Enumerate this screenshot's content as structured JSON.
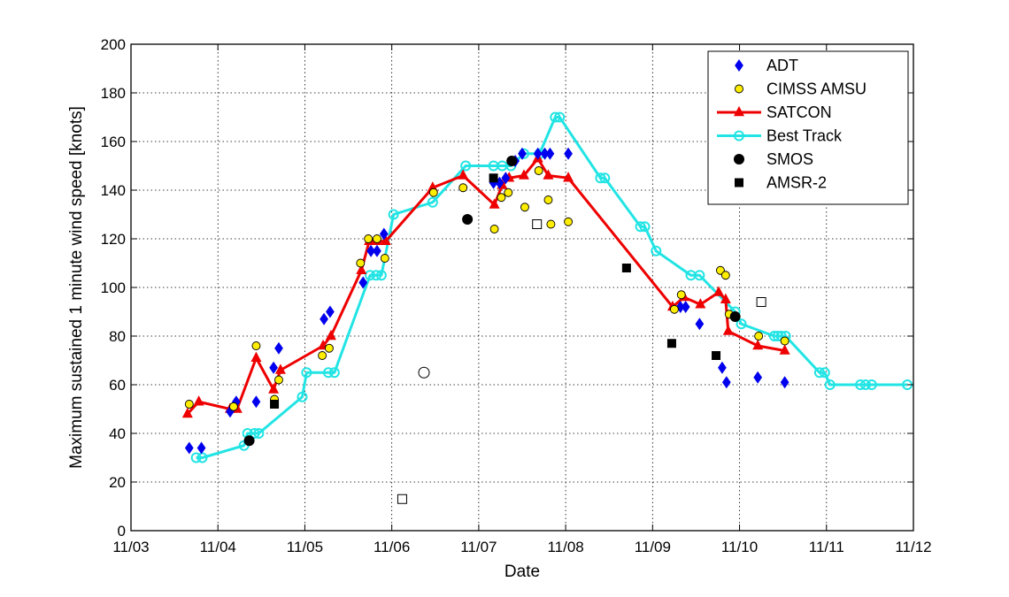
{
  "chart_data": {
    "type": "scatter",
    "xlabel": "Date",
    "ylabel": "Maximum sustained 1 minute wind speed [knots]",
    "xlim": [
      3,
      12
    ],
    "ylim": [
      0,
      200
    ],
    "x_ticks": [
      3,
      4,
      5,
      6,
      7,
      8,
      9,
      10,
      11,
      12
    ],
    "x_tick_labels": [
      "11/03",
      "11/04",
      "11/05",
      "11/06",
      "11/07",
      "11/08",
      "11/09",
      "11/10",
      "11/11",
      "11/12"
    ],
    "y_ticks": [
      0,
      20,
      40,
      60,
      80,
      100,
      120,
      140,
      160,
      180,
      200
    ],
    "y_tick_labels": [
      "0",
      "20",
      "40",
      "60",
      "80",
      "100",
      "120",
      "140",
      "160",
      "180",
      "200"
    ],
    "grid": true,
    "legend_position": "top-right",
    "series": [
      {
        "name": "ADT",
        "color": "#0000ee",
        "marker": "diamond",
        "line": false,
        "points": [
          [
            3.67,
            34
          ],
          [
            3.81,
            34
          ],
          [
            4.14,
            49
          ],
          [
            4.21,
            53
          ],
          [
            4.44,
            53
          ],
          [
            4.64,
            67
          ],
          [
            4.7,
            75
          ],
          [
            5.22,
            87
          ],
          [
            5.29,
            90
          ],
          [
            5.67,
            102
          ],
          [
            5.76,
            115
          ],
          [
            5.83,
            115
          ],
          [
            5.91,
            122
          ],
          [
            7.17,
            143
          ],
          [
            7.24,
            143
          ],
          [
            7.31,
            145
          ],
          [
            7.42,
            152
          ],
          [
            7.5,
            155
          ],
          [
            7.68,
            155
          ],
          [
            7.76,
            155
          ],
          [
            7.82,
            155
          ],
          [
            8.03,
            155
          ],
          [
            9.32,
            92
          ],
          [
            9.38,
            92
          ],
          [
            9.54,
            85
          ],
          [
            9.8,
            67
          ],
          [
            9.85,
            61
          ],
          [
            10.21,
            63
          ],
          [
            10.52,
            61
          ]
        ]
      },
      {
        "name": "CIMSS AMSU",
        "color": "#ffee00",
        "marker": "circle",
        "line": false,
        "points": [
          [
            3.67,
            52
          ],
          [
            4.18,
            51
          ],
          [
            4.44,
            76
          ],
          [
            4.65,
            54
          ],
          [
            4.7,
            62
          ],
          [
            5.2,
            72
          ],
          [
            5.28,
            75
          ],
          [
            5.64,
            110
          ],
          [
            5.73,
            120
          ],
          [
            5.83,
            120
          ],
          [
            5.92,
            112
          ],
          [
            6.48,
            139
          ],
          [
            6.82,
            141
          ],
          [
            7.18,
            124
          ],
          [
            7.26,
            137
          ],
          [
            7.34,
            139
          ],
          [
            7.53,
            133
          ],
          [
            7.69,
            148
          ],
          [
            7.8,
            136
          ],
          [
            7.83,
            126
          ],
          [
            8.03,
            127
          ],
          [
            9.25,
            91
          ],
          [
            9.33,
            97
          ],
          [
            9.78,
            107
          ],
          [
            9.84,
            105
          ],
          [
            9.88,
            89
          ],
          [
            10.22,
            80
          ],
          [
            10.52,
            78
          ]
        ]
      },
      {
        "name": "SATCON",
        "color": "#ee0000",
        "marker": "triangle",
        "line": true,
        "points": [
          [
            3.65,
            48
          ],
          [
            3.78,
            53
          ],
          [
            4.14,
            50
          ],
          [
            4.22,
            50
          ],
          [
            4.44,
            71
          ],
          [
            4.64,
            58
          ],
          [
            4.72,
            66
          ],
          [
            5.21,
            76
          ],
          [
            5.3,
            80
          ],
          [
            5.65,
            107
          ],
          [
            5.74,
            119
          ],
          [
            5.83,
            119
          ],
          [
            5.93,
            119
          ],
          [
            6.47,
            141
          ],
          [
            6.82,
            146
          ],
          [
            7.18,
            134
          ],
          [
            7.27,
            142
          ],
          [
            7.35,
            145
          ],
          [
            7.52,
            146
          ],
          [
            7.68,
            153
          ],
          [
            7.8,
            146
          ],
          [
            8.03,
            145
          ],
          [
            9.23,
            92
          ],
          [
            9.36,
            96
          ],
          [
            9.55,
            93
          ],
          [
            9.76,
            98
          ],
          [
            9.84,
            95
          ],
          [
            9.87,
            82
          ],
          [
            10.21,
            76
          ],
          [
            10.52,
            74
          ]
        ]
      },
      {
        "name": "Best Track",
        "color": "#22e4e4",
        "marker": "open-circle",
        "line": true,
        "points": [
          [
            3.75,
            30
          ],
          [
            3.82,
            30
          ],
          [
            4.3,
            35
          ],
          [
            4.34,
            40
          ],
          [
            4.42,
            40
          ],
          [
            4.47,
            40
          ],
          [
            4.97,
            55
          ],
          [
            5.02,
            65
          ],
          [
            5.27,
            65
          ],
          [
            5.34,
            65
          ],
          [
            5.75,
            105
          ],
          [
            5.82,
            105
          ],
          [
            5.88,
            105
          ],
          [
            6.02,
            130
          ],
          [
            6.47,
            135
          ],
          [
            6.85,
            150
          ],
          [
            7.17,
            150
          ],
          [
            7.27,
            150
          ],
          [
            7.37,
            150
          ],
          [
            7.52,
            155
          ],
          [
            7.7,
            155
          ],
          [
            7.88,
            170
          ],
          [
            7.93,
            170
          ],
          [
            8.4,
            145
          ],
          [
            8.45,
            145
          ],
          [
            8.86,
            125
          ],
          [
            8.91,
            125
          ],
          [
            9.04,
            115
          ],
          [
            9.44,
            105
          ],
          [
            9.54,
            105
          ],
          [
            9.95,
            90
          ],
          [
            10.02,
            85
          ],
          [
            10.4,
            80
          ],
          [
            10.44,
            80
          ],
          [
            10.48,
            80
          ],
          [
            10.53,
            80
          ],
          [
            10.92,
            65
          ],
          [
            10.98,
            65
          ],
          [
            11.04,
            60
          ],
          [
            11.39,
            60
          ],
          [
            11.45,
            60
          ],
          [
            11.52,
            60
          ],
          [
            11.93,
            60
          ]
        ]
      },
      {
        "name": "SMOS",
        "color": "#000000",
        "marker": "filled-circle",
        "line": false,
        "points": [
          [
            4.36,
            37
          ],
          [
            6.87,
            128
          ],
          [
            7.38,
            152
          ],
          [
            9.95,
            88
          ]
        ]
      },
      {
        "name": "",
        "color": "#000000",
        "marker": "hollow-circle",
        "line": false,
        "points": [
          [
            6.37,
            65
          ]
        ]
      },
      {
        "name": "AMSR-2",
        "color": "#000000",
        "marker": "filled-square",
        "line": false,
        "points": [
          [
            4.65,
            52
          ],
          [
            7.17,
            145
          ],
          [
            8.7,
            108
          ],
          [
            9.22,
            77
          ],
          [
            9.73,
            72
          ]
        ]
      },
      {
        "name": "",
        "color": "#000000",
        "marker": "hollow-square",
        "line": false,
        "points": [
          [
            6.12,
            13
          ],
          [
            7.67,
            126
          ],
          [
            10.25,
            94
          ]
        ]
      }
    ]
  }
}
